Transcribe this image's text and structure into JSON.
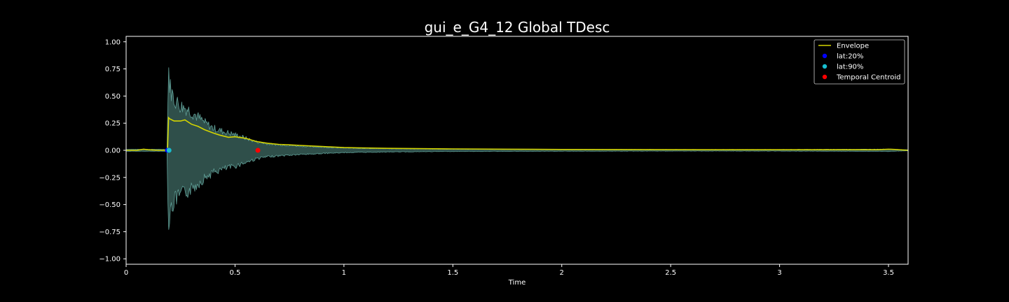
{
  "chart_data": {
    "type": "line",
    "title": "gui_e_G4_12 Global TDesc",
    "xlabel": "Time",
    "ylabel": "",
    "xlim": [
      0,
      3.59
    ],
    "ylim": [
      -1.05,
      1.05
    ],
    "xticks": [
      0,
      0.5,
      1,
      1.5,
      2,
      2.5,
      3,
      3.5
    ],
    "xtick_labels": [
      "0",
      "0.5",
      "1",
      "1.5",
      "2",
      "2.5",
      "3",
      "3.5"
    ],
    "yticks": [
      1.0,
      0.75,
      0.5,
      0.25,
      0.0,
      -0.25,
      -0.5,
      -0.75,
      -1.0
    ],
    "ytick_labels": [
      "1.00",
      "0.75",
      "0.50",
      "0.25",
      "0.00",
      "−0.25",
      "−0.50",
      "−0.75",
      "−1.00"
    ],
    "grid": false,
    "legend_position": "top-right",
    "waveform_envelope": {
      "x": [
        0,
        0.19,
        0.193,
        0.2,
        0.22,
        0.25,
        0.28,
        0.32,
        0.36,
        0.4,
        0.45,
        0.5,
        0.55,
        0.6,
        0.65,
        0.7,
        0.8,
        0.9,
        1.0,
        1.2,
        1.5,
        2.0,
        2.5,
        3.0,
        3.5,
        3.59
      ],
      "amplitude": [
        0.01,
        0.01,
        0.96,
        0.7,
        0.55,
        0.48,
        0.45,
        0.38,
        0.3,
        0.24,
        0.2,
        0.17,
        0.13,
        0.09,
        0.07,
        0.06,
        0.045,
        0.035,
        0.025,
        0.018,
        0.012,
        0.01,
        0.008,
        0.008,
        0.012,
        0.005
      ]
    },
    "series": [
      {
        "name": "Envelope",
        "type": "line",
        "color": "#d4d400",
        "x": [
          0,
          0.05,
          0.08,
          0.1,
          0.15,
          0.19,
          0.195,
          0.2,
          0.22,
          0.25,
          0.27,
          0.3,
          0.33,
          0.36,
          0.4,
          0.43,
          0.47,
          0.5,
          0.55,
          0.6,
          0.65,
          0.7,
          0.75,
          0.8,
          0.9,
          1.0,
          1.2,
          1.5,
          1.75,
          2.0,
          2.5,
          3.0,
          3.45,
          3.5,
          3.53,
          3.59
        ],
        "y": [
          0.0,
          0.0,
          0.01,
          0.005,
          0.0,
          0.0,
          0.3,
          0.29,
          0.27,
          0.27,
          0.28,
          0.24,
          0.22,
          0.19,
          0.16,
          0.14,
          0.12,
          0.125,
          0.11,
          0.08,
          0.065,
          0.055,
          0.05,
          0.045,
          0.035,
          0.025,
          0.018,
          0.013,
          0.01,
          0.008,
          0.006,
          0.005,
          0.005,
          0.01,
          0.008,
          0.0
        ]
      },
      {
        "name": "lat:20%",
        "type": "scatter",
        "color": "#0000ff",
        "x": [
          0.19
        ],
        "y": [
          0.0
        ]
      },
      {
        "name": "lat:90%",
        "type": "scatter",
        "color": "#17becf",
        "x": [
          0.197
        ],
        "y": [
          0.0
        ]
      },
      {
        "name": "Temporal Centroid",
        "type": "scatter",
        "color": "#ff0000",
        "x": [
          0.605
        ],
        "y": [
          0.0
        ]
      }
    ],
    "colors": {
      "background": "#000000",
      "axes": "#ffffff",
      "waveform_fill": "#2f4f4a",
      "waveform_edge": "#5f9e96"
    }
  }
}
